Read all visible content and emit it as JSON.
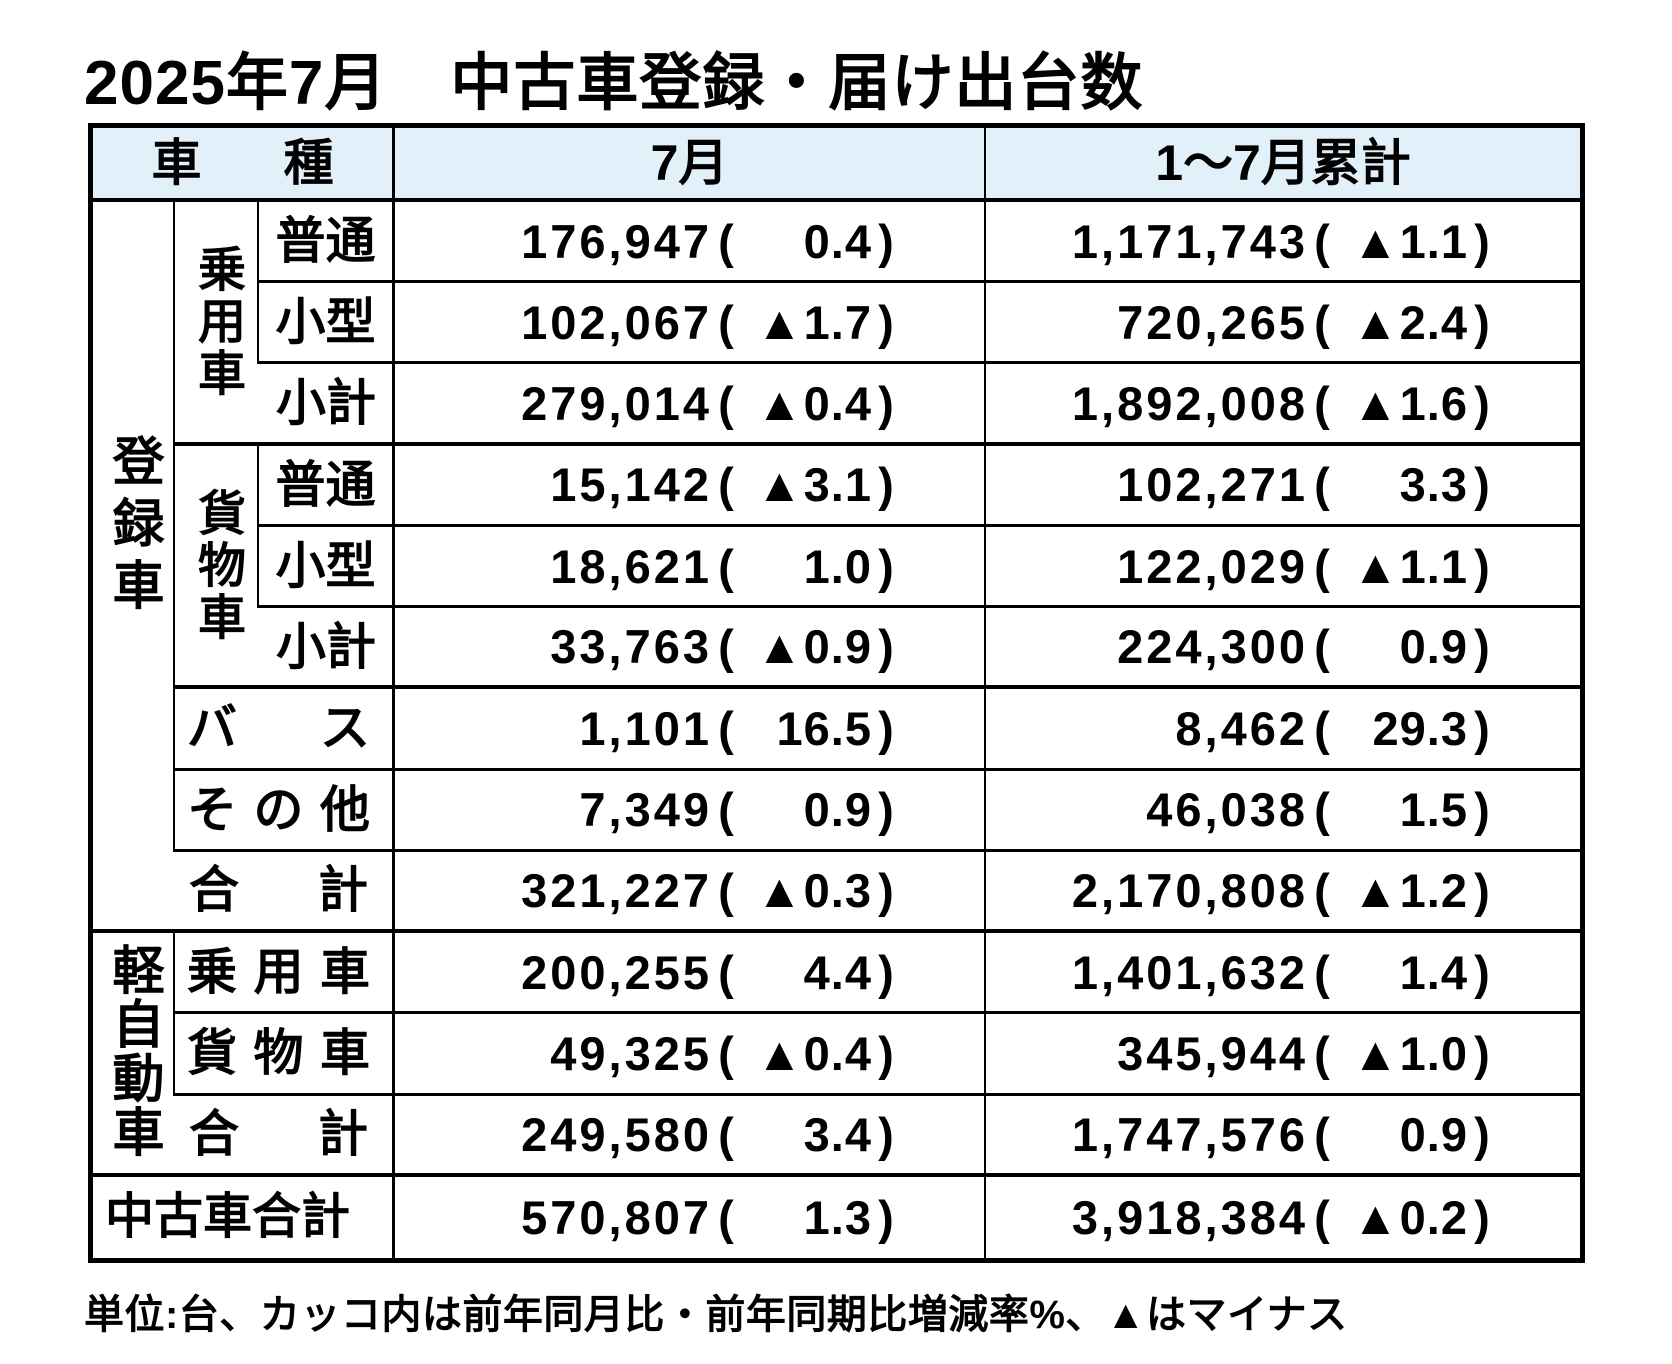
{
  "title": "2025年7月　中古車登録・届け出台数",
  "header": {
    "vehicle_type": "車種",
    "july": "7月",
    "cumulative": "1～7月累計"
  },
  "sections": {
    "registered": "登録車",
    "kei": "軽自動車",
    "passenger": "乗用車",
    "cargo": "貨物車"
  },
  "rows": [
    {
      "label": "普通",
      "july_value": "176,947",
      "july_rate": "0.4",
      "cum_value": "1,171,743",
      "cum_rate": "▲1.1"
    },
    {
      "label": "小型",
      "july_value": "102,067",
      "july_rate": "▲1.7",
      "cum_value": "720,265",
      "cum_rate": "▲2.4"
    },
    {
      "label": "小計",
      "july_value": "279,014",
      "july_rate": "▲0.4",
      "cum_value": "1,892,008",
      "cum_rate": "▲1.6"
    },
    {
      "label": "普通",
      "july_value": "15,142",
      "july_rate": "▲3.1",
      "cum_value": "102,271",
      "cum_rate": "3.3"
    },
    {
      "label": "小型",
      "july_value": "18,621",
      "july_rate": "1.0",
      "cum_value": "122,029",
      "cum_rate": "▲1.1"
    },
    {
      "label": "小計",
      "july_value": "33,763",
      "july_rate": "▲0.9",
      "cum_value": "224,300",
      "cum_rate": "0.9"
    },
    {
      "label": "バス",
      "july_value": "1,101",
      "july_rate": "16.5",
      "cum_value": "8,462",
      "cum_rate": "29.3"
    },
    {
      "label": "その他",
      "july_value": "7,349",
      "july_rate": "0.9",
      "cum_value": "46,038",
      "cum_rate": "1.5"
    },
    {
      "label": "合計",
      "july_value": "321,227",
      "july_rate": "▲0.3",
      "cum_value": "2,170,808",
      "cum_rate": "▲1.2"
    },
    {
      "label": "乗用車",
      "july_value": "200,255",
      "july_rate": "4.4",
      "cum_value": "1,401,632",
      "cum_rate": "1.4"
    },
    {
      "label": "貨物車",
      "july_value": "49,325",
      "july_rate": "▲0.4",
      "cum_value": "345,944",
      "cum_rate": "▲1.0"
    },
    {
      "label": "合計",
      "july_value": "249,580",
      "july_rate": "3.4",
      "cum_value": "1,747,576",
      "cum_rate": "0.9"
    },
    {
      "label": "中古車合計",
      "july_value": "570,807",
      "july_rate": "1.3",
      "cum_value": "3,918,384",
      "cum_rate": "▲0.2"
    }
  ],
  "footnote": "単位:台、カッコ内は前年同月比・前年同期比増減率%、▲はマイナス",
  "colors": {
    "header_bg": "#e2f0f9",
    "border": "#000000",
    "text": "#000000",
    "background": "#ffffff"
  },
  "minus_marker": "▲",
  "chart_data": {
    "type": "table",
    "title": "2025年7月　中古車登録・届け出台数",
    "columns": [
      "車種",
      "7月 台数",
      "7月 前年同月比%",
      "1～7月累計 台数",
      "1～7月累計 前年同期比%"
    ],
    "rows": [
      [
        "登録車 乗用車 普通",
        176947,
        0.4,
        1171743,
        -1.1
      ],
      [
        "登録車 乗用車 小型",
        102067,
        -1.7,
        720265,
        -2.4
      ],
      [
        "登録車 乗用車 小計",
        279014,
        -0.4,
        1892008,
        -1.6
      ],
      [
        "登録車 貨物車 普通",
        15142,
        -3.1,
        102271,
        3.3
      ],
      [
        "登録車 貨物車 小型",
        18621,
        1.0,
        122029,
        -1.1
      ],
      [
        "登録車 貨物車 小計",
        33763,
        -0.9,
        224300,
        0.9
      ],
      [
        "登録車 バス",
        1101,
        16.5,
        8462,
        29.3
      ],
      [
        "登録車 その他",
        7349,
        0.9,
        46038,
        1.5
      ],
      [
        "登録車 合計",
        321227,
        -0.3,
        2170808,
        -1.2
      ],
      [
        "軽自動車 乗用車",
        200255,
        4.4,
        1401632,
        1.4
      ],
      [
        "軽自動車 貨物車",
        49325,
        -0.4,
        345944,
        -1.0
      ],
      [
        "軽自動車 合計",
        249580,
        3.4,
        1747576,
        0.9
      ],
      [
        "中古車合計",
        570807,
        1.3,
        3918384,
        -0.2
      ]
    ],
    "note": "単位:台、カッコ内は前年同月比・前年同期比増減率%、▲はマイナス"
  }
}
